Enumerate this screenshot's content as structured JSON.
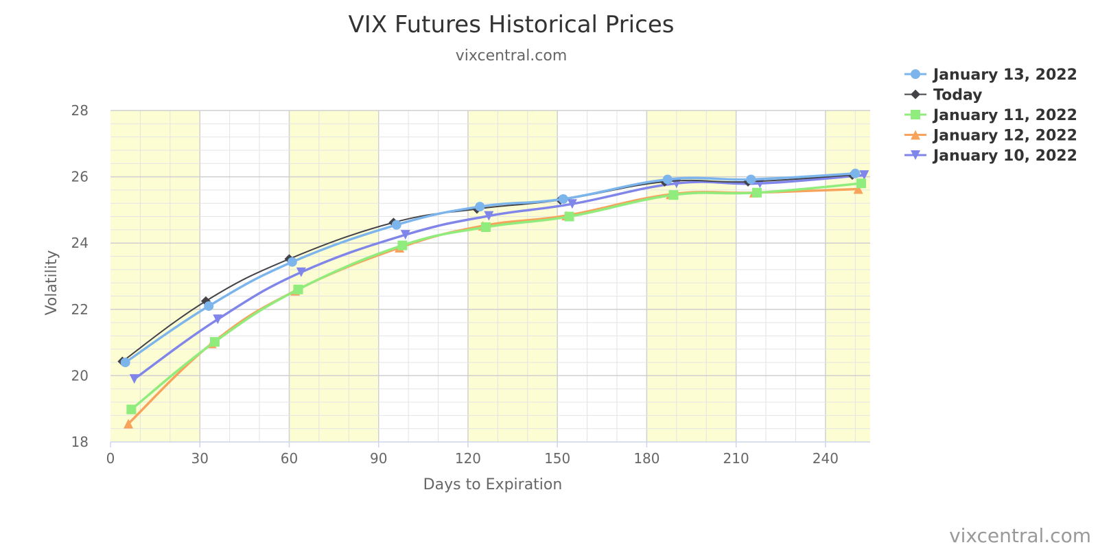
{
  "chart_data": {
    "type": "line",
    "title": "VIX Futures Historical Prices",
    "subtitle": "vixcentral.com",
    "xlabel": "Days to Expiration",
    "ylabel": "Volatility",
    "xlim": [
      0,
      255
    ],
    "ylim": [
      18,
      28
    ],
    "xticks": [
      0,
      30,
      60,
      90,
      120,
      150,
      180,
      210,
      240
    ],
    "yticks": [
      18,
      20,
      22,
      24,
      26,
      28
    ],
    "x_minor_step": 10,
    "y_minor_step": 0.4,
    "grid": true,
    "shaded_x_bands": [
      [
        0,
        30
      ],
      [
        60,
        90
      ],
      [
        120,
        150
      ],
      [
        180,
        210
      ],
      [
        240,
        255
      ]
    ],
    "band_color": "#fdfdd4",
    "legend_position": "top-right",
    "credits": "vixcentral.com",
    "series": [
      {
        "name": "January 13, 2022",
        "color": "#7cb5ec",
        "marker": "circle",
        "points": [
          [
            5,
            20.4
          ],
          [
            33,
            22.1
          ],
          [
            61,
            23.43
          ],
          [
            96,
            24.55
          ],
          [
            124,
            25.1
          ],
          [
            152,
            25.33
          ],
          [
            187,
            25.92
          ],
          [
            215,
            25.92
          ],
          [
            250,
            26.1
          ]
        ]
      },
      {
        "name": "Today",
        "color": "#434348",
        "marker": "diamond",
        "points": [
          [
            4,
            20.43
          ],
          [
            32,
            22.25
          ],
          [
            60,
            23.52
          ],
          [
            95,
            24.62
          ],
          [
            123,
            25.03
          ],
          [
            151,
            25.3
          ],
          [
            186,
            25.85
          ],
          [
            214,
            25.85
          ],
          [
            249,
            26.05
          ]
        ]
      },
      {
        "name": "January 11, 2022",
        "color": "#90ed7d",
        "marker": "square",
        "points": [
          [
            7,
            18.98
          ],
          [
            35,
            21.02
          ],
          [
            63,
            22.6
          ],
          [
            98,
            23.93
          ],
          [
            126,
            24.48
          ],
          [
            154,
            24.8
          ],
          [
            189,
            25.45
          ],
          [
            217,
            25.52
          ],
          [
            252,
            25.8
          ]
        ]
      },
      {
        "name": "January 12, 2022",
        "color": "#f7a35c",
        "marker": "triangle",
        "points": [
          [
            6,
            18.55
          ],
          [
            34,
            20.97
          ],
          [
            62,
            22.56
          ],
          [
            97,
            23.86
          ],
          [
            125,
            24.52
          ],
          [
            153,
            24.83
          ],
          [
            188,
            25.47
          ],
          [
            216,
            25.52
          ],
          [
            251,
            25.63
          ]
        ]
      },
      {
        "name": "January 10, 2022",
        "color": "#8085e9",
        "marker": "triangle-down",
        "points": [
          [
            8,
            19.9
          ],
          [
            36,
            21.7
          ],
          [
            64,
            23.12
          ],
          [
            99,
            24.25
          ],
          [
            127,
            24.82
          ],
          [
            155,
            25.18
          ],
          [
            190,
            25.8
          ],
          [
            218,
            25.8
          ],
          [
            253,
            26.05
          ]
        ]
      }
    ]
  }
}
